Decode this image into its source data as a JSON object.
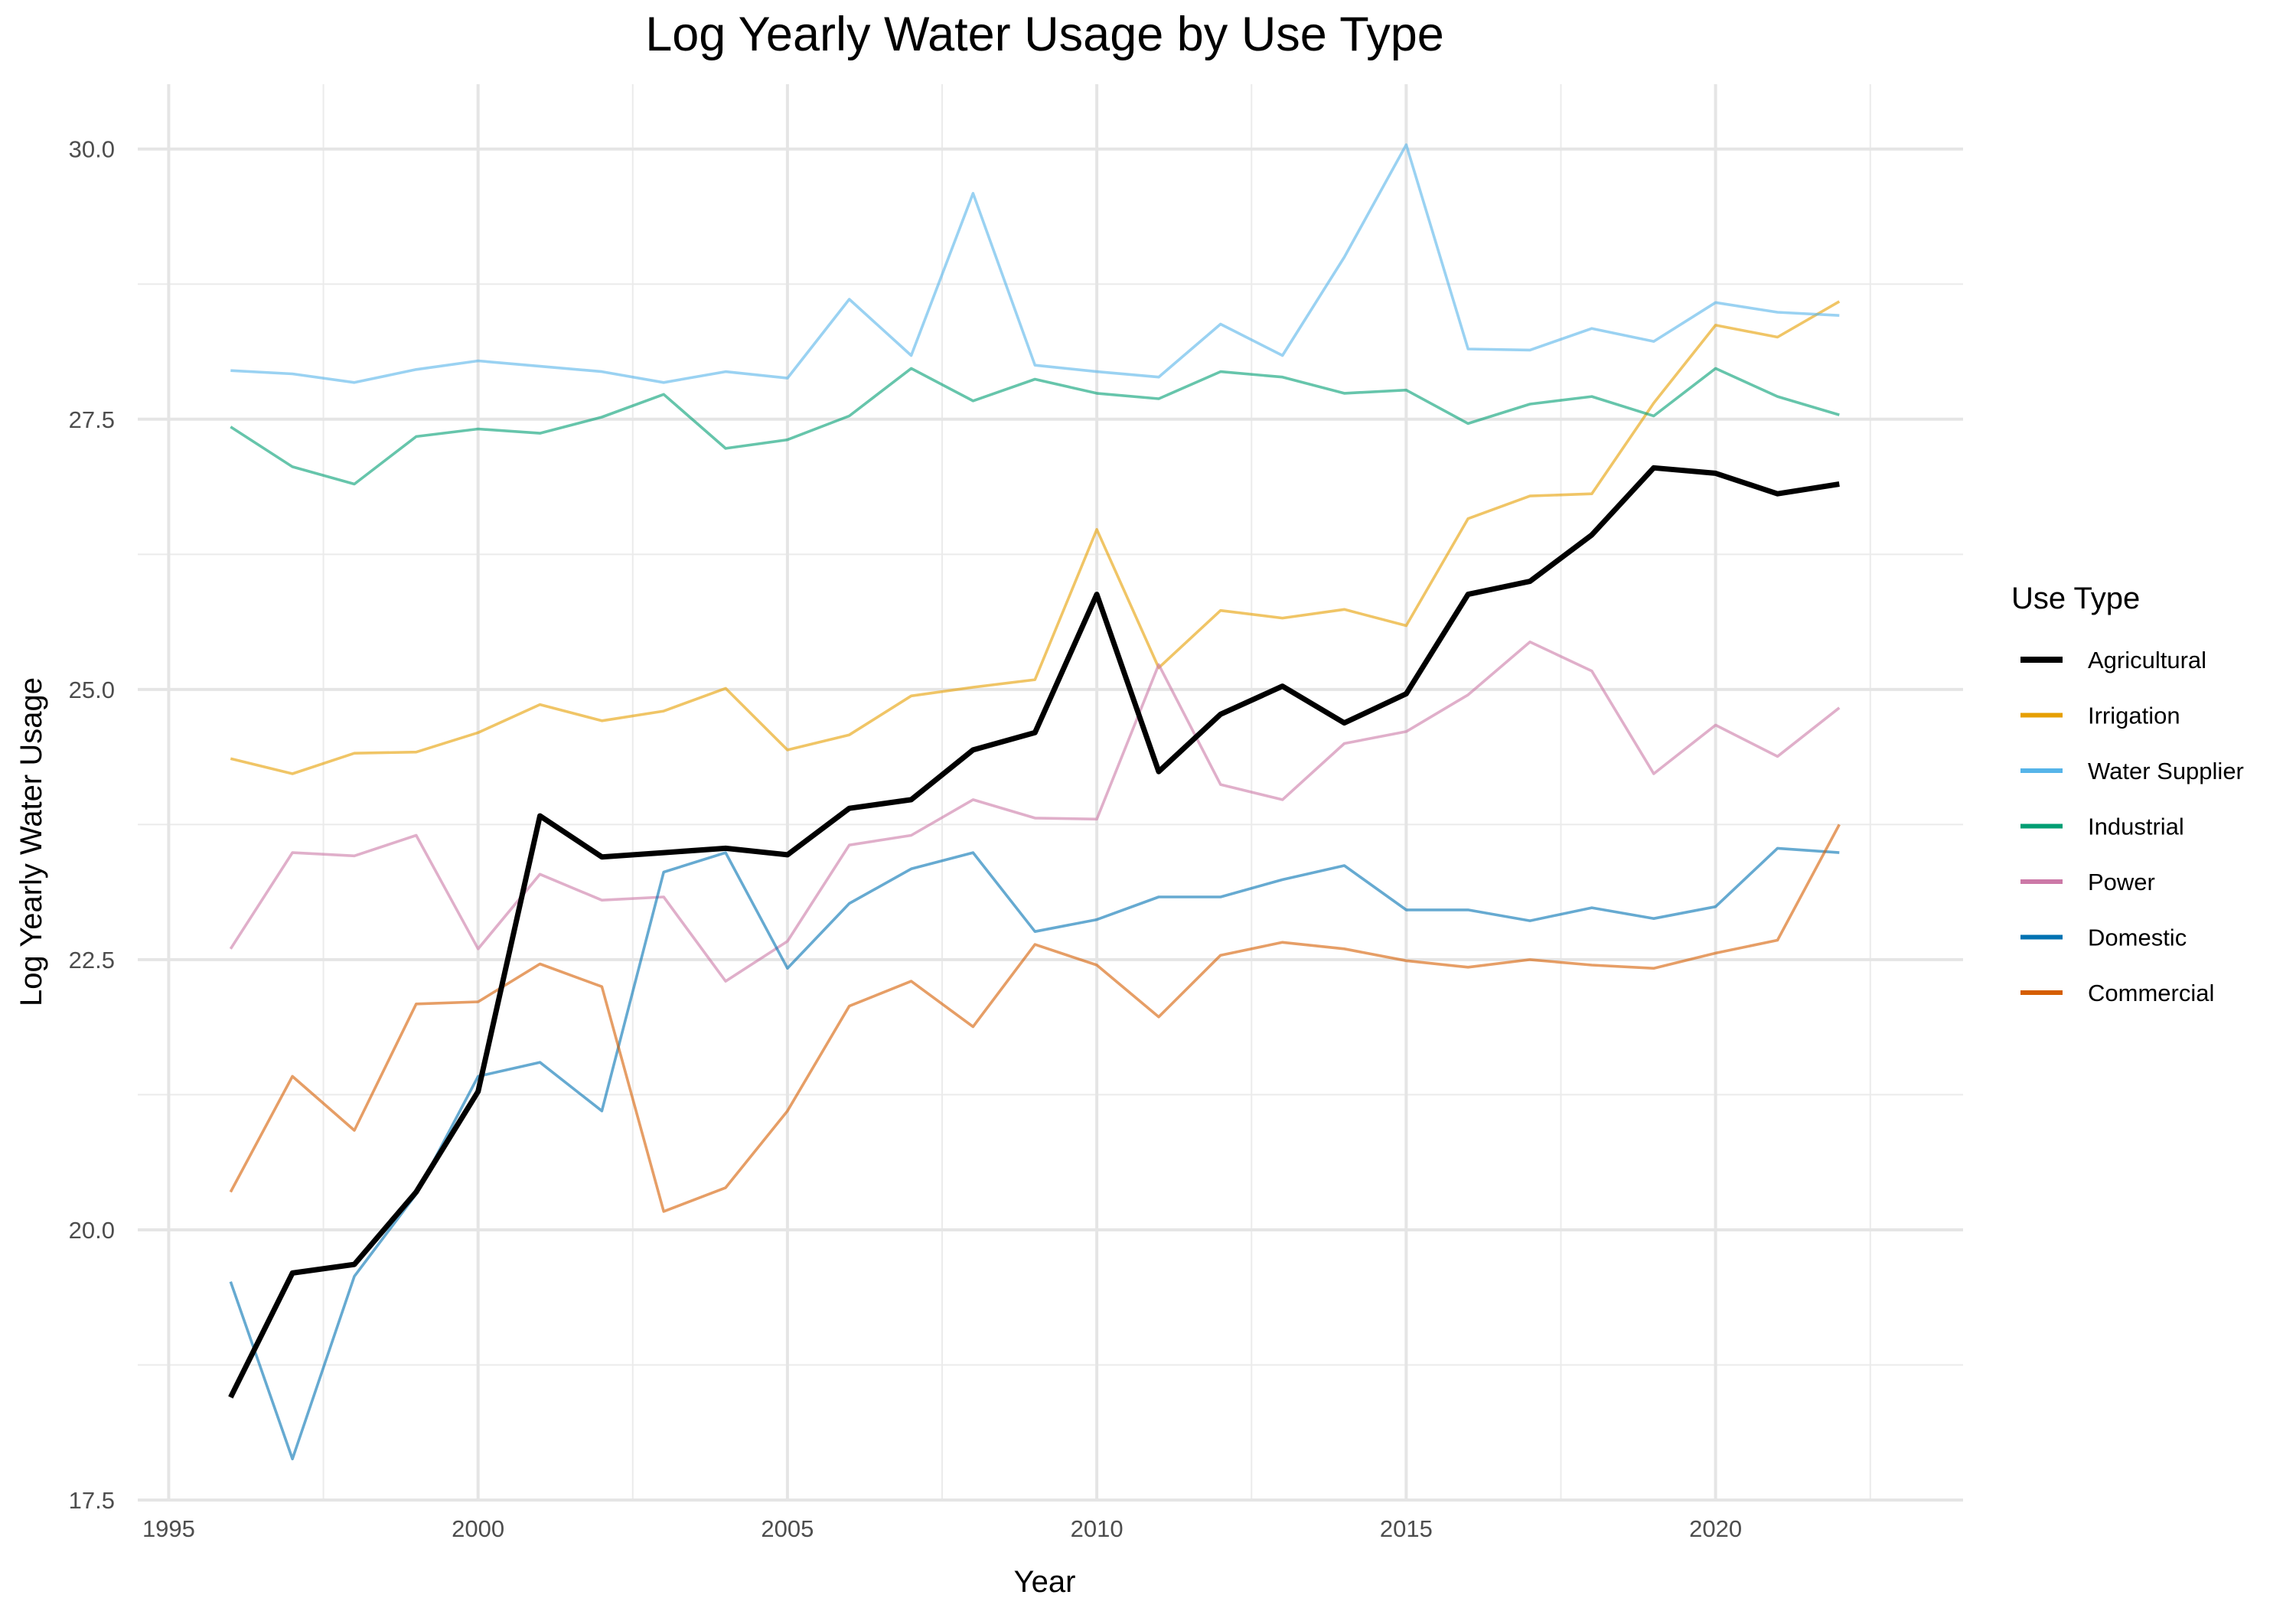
{
  "chart_data": {
    "type": "line",
    "title": "Log Yearly Water Usage by Use Type",
    "xlabel": "Year",
    "ylabel": "Log Yearly Water Usage",
    "xlim": [
      1994.5,
      2024
    ],
    "ylim": [
      17.5,
      30.6
    ],
    "x_ticks": [
      1995,
      2000,
      2005,
      2010,
      2015,
      2020
    ],
    "x_tick_labels": [
      "1995",
      "2000",
      "2005",
      "2010",
      "2015",
      "2020"
    ],
    "x_minor_ticks": [
      1997.5,
      2002.5,
      2007.5,
      2012.5,
      2017.5,
      2022.5
    ],
    "y_ticks": [
      17.5,
      20.0,
      22.5,
      25.0,
      27.5,
      30.0
    ],
    "y_tick_labels": [
      "17.5",
      "20.0",
      "22.5",
      "25.0",
      "27.5",
      "30.0"
    ],
    "y_minor_ticks": [
      18.75,
      21.25,
      23.75,
      26.25,
      28.75
    ],
    "grid": true,
    "legend": {
      "title": "Use Type",
      "position": "right"
    },
    "x": [
      1996,
      1997,
      1998,
      1999,
      2000,
      2001,
      2002,
      2003,
      2004,
      2005,
      2006,
      2007,
      2008,
      2009,
      2010,
      2011,
      2012,
      2013,
      2014,
      2015,
      2016,
      2017,
      2018,
      2019,
      2020,
      2021,
      2022
    ],
    "series": [
      {
        "name": "Agricultural",
        "color": "#000000",
        "opacity": 1.0,
        "emphasis": true,
        "values": [
          18.45,
          19.6,
          19.68,
          20.35,
          21.28,
          23.83,
          23.45,
          23.49,
          23.53,
          23.47,
          23.9,
          23.98,
          24.44,
          24.6,
          25.88,
          24.24,
          24.77,
          25.03,
          24.69,
          24.96,
          25.88,
          26.0,
          26.43,
          27.05,
          27.0,
          26.81,
          26.9
        ]
      },
      {
        "name": "Irrigation",
        "color": "#E69F00",
        "opacity": 0.6,
        "emphasis": false,
        "values": [
          24.36,
          24.22,
          24.41,
          24.42,
          24.6,
          24.86,
          24.71,
          24.8,
          25.01,
          24.44,
          24.58,
          24.94,
          25.02,
          25.09,
          26.48,
          25.2,
          25.73,
          25.66,
          25.74,
          25.59,
          26.58,
          26.79,
          26.81,
          27.65,
          28.37,
          28.26,
          28.59
        ]
      },
      {
        "name": "Water Supplier",
        "color": "#56B4E9",
        "opacity": 0.6,
        "emphasis": false,
        "values": [
          27.95,
          27.92,
          27.84,
          27.96,
          28.04,
          27.99,
          27.94,
          27.84,
          27.94,
          27.88,
          28.61,
          28.09,
          29.59,
          28.0,
          27.94,
          27.89,
          28.38,
          28.09,
          29.0,
          30.04,
          28.15,
          28.14,
          28.34,
          28.22,
          28.58,
          28.49,
          28.46
        ]
      },
      {
        "name": "Industrial",
        "color": "#009E73",
        "opacity": 0.6,
        "emphasis": false,
        "values": [
          27.43,
          27.06,
          26.9,
          27.34,
          27.41,
          27.37,
          27.52,
          27.73,
          27.23,
          27.31,
          27.53,
          27.97,
          27.67,
          27.87,
          27.74,
          27.69,
          27.94,
          27.89,
          27.74,
          27.77,
          27.46,
          27.64,
          27.71,
          27.53,
          27.97,
          27.71,
          27.54
        ]
      },
      {
        "name": "Power",
        "color": "#CC79A7",
        "opacity": 0.6,
        "emphasis": false,
        "values": [
          22.6,
          23.49,
          23.46,
          23.65,
          22.6,
          23.29,
          23.05,
          23.08,
          22.3,
          22.67,
          23.56,
          23.65,
          23.98,
          23.81,
          23.8,
          25.23,
          24.12,
          23.98,
          24.5,
          24.61,
          24.95,
          25.44,
          25.17,
          24.22,
          24.67,
          24.38,
          24.83
        ]
      },
      {
        "name": "Domestic",
        "color": "#0072B2",
        "opacity": 0.6,
        "emphasis": false,
        "values": [
          19.52,
          17.88,
          19.57,
          20.33,
          21.42,
          21.55,
          21.1,
          23.31,
          23.49,
          22.42,
          23.02,
          23.34,
          23.49,
          22.76,
          22.87,
          23.08,
          23.08,
          23.24,
          23.37,
          22.96,
          22.96,
          22.86,
          22.98,
          22.88,
          22.99,
          23.53,
          23.49
        ]
      },
      {
        "name": "Commercial",
        "color": "#D55E00",
        "opacity": 0.6,
        "emphasis": false,
        "values": [
          20.35,
          21.42,
          20.92,
          22.09,
          22.11,
          22.46,
          22.25,
          20.17,
          20.39,
          21.1,
          22.07,
          22.3,
          21.88,
          22.64,
          22.45,
          21.97,
          22.54,
          22.66,
          22.6,
          22.49,
          22.43,
          22.5,
          22.45,
          22.42,
          22.56,
          22.68,
          23.75
        ]
      }
    ]
  }
}
